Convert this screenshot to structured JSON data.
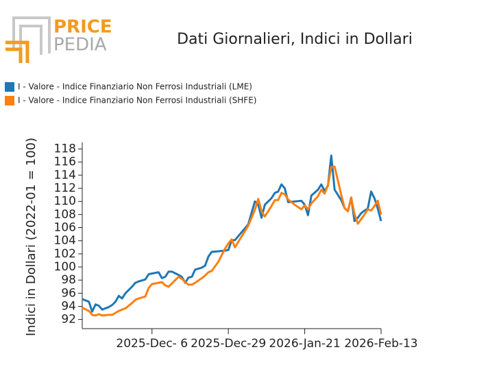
{
  "logo": {
    "top": "PRICE",
    "bottom": "PEDIA"
  },
  "chart_data": {
    "type": "line",
    "title": "Dati Giornalieri, Indici in Dollari",
    "y_label": "Indici in Dollari (2022-01 = 100)",
    "legend": "top-left",
    "x": [
      "2025-11-15",
      "2025-11-17",
      "2025-11-18",
      "2025-11-19",
      "2025-11-20",
      "2025-11-21",
      "2025-11-23",
      "2025-11-24",
      "2025-11-25",
      "2025-11-26",
      "2025-11-27",
      "2025-11-28",
      "2025-11-30",
      "2025-12-01",
      "2025-12-02",
      "2025-12-04",
      "2025-12-05",
      "2025-12-06",
      "2025-12-08",
      "2025-12-09",
      "2025-12-10",
      "2025-12-11",
      "2025-12-12",
      "2025-12-14",
      "2025-12-15",
      "2025-12-16",
      "2025-12-17",
      "2025-12-18",
      "2025-12-19",
      "2025-12-21",
      "2025-12-22",
      "2025-12-23",
      "2025-12-24",
      "2025-12-26",
      "2025-12-28",
      "2025-12-29",
      "2025-12-30",
      "2025-12-31",
      "2026-01-04",
      "2026-01-06",
      "2026-01-07",
      "2026-01-08",
      "2026-01-09",
      "2026-01-11",
      "2026-01-12",
      "2026-01-13",
      "2026-01-14",
      "2026-01-15",
      "2026-01-16",
      "2026-01-18",
      "2026-01-20",
      "2026-01-21",
      "2026-01-22",
      "2026-01-23",
      "2026-01-25",
      "2026-01-26",
      "2026-01-27",
      "2026-01-28",
      "2026-01-29",
      "2026-01-30",
      "2026-02-01",
      "2026-02-02",
      "2026-02-03",
      "2026-02-04",
      "2026-02-05",
      "2026-02-06",
      "2026-02-07",
      "2026-02-08",
      "2026-02-09",
      "2026-02-10",
      "2026-02-11",
      "2026-02-12",
      "2026-02-13"
    ],
    "series": [
      {
        "name": "I - Valore - Indice Finanziario Non Ferrosi Industriali (LME)",
        "color": "#1f77b4",
        "values": [
          95.1,
          94.7,
          93.2,
          94.3,
          94.1,
          93.5,
          93.9,
          94.2,
          94.7,
          95.6,
          95.2,
          96.0,
          97.0,
          97.6,
          97.8,
          98.1,
          98.9,
          99.0,
          99.2,
          98.3,
          98.5,
          99.3,
          99.3,
          98.8,
          98.5,
          97.6,
          98.4,
          98.5,
          99.6,
          99.9,
          100.2,
          101.6,
          102.3,
          102.4,
          102.5,
          102.6,
          104.1,
          104.1,
          106.5,
          110.0,
          109.5,
          107.5,
          109.5,
          110.5,
          111.3,
          111.5,
          112.6,
          112.0,
          109.9,
          110.0,
          110.1,
          109.5,
          107.9,
          110.9,
          111.8,
          112.6,
          111.6,
          112.4,
          117.0,
          111.8,
          110.2,
          109.0,
          108.5,
          110.6,
          107.0,
          107.5,
          108.2,
          108.6,
          108.9,
          111.5,
          110.5,
          108.9,
          107.0
        ]
      },
      {
        "name": "I - Valore - Indice Finanziario Non Ferrosi Industriali (SHFE)",
        "color": "#ff7f0e",
        "values": [
          93.8,
          93.3,
          92.7,
          92.6,
          92.8,
          92.6,
          92.7,
          92.7,
          93.0,
          93.3,
          93.5,
          93.7,
          94.5,
          95.0,
          95.2,
          95.5,
          96.8,
          97.4,
          97.6,
          97.7,
          97.2,
          97.0,
          97.5,
          98.5,
          98.2,
          97.7,
          97.3,
          97.3,
          97.6,
          98.3,
          98.7,
          99.2,
          99.4,
          100.8,
          102.8,
          103.6,
          104.2,
          103.0,
          106.3,
          108.7,
          110.4,
          108.5,
          107.7,
          109.3,
          110.2,
          110.2,
          111.3,
          111.1,
          110.3,
          109.5,
          108.8,
          109.4,
          108.8,
          109.7,
          110.8,
          111.8,
          111.2,
          112.5,
          115.2,
          115.3,
          111.0,
          109.0,
          108.5,
          110.6,
          108.1,
          106.6,
          107.3,
          108.0,
          108.8,
          108.6,
          109.3,
          110.1,
          108.0
        ]
      }
    ],
    "xlim": [
      "2025-11-15",
      "2026-02-13"
    ],
    "xticks": [
      {
        "value": "2025-12-06",
        "label": "2025-Dec- 6"
      },
      {
        "value": "2025-12-29",
        "label": "2025-Dec-29"
      },
      {
        "value": "2026-01-21",
        "label": "2026-Jan-21"
      },
      {
        "value": "2026-02-13",
        "label": "2026-Feb-13"
      }
    ],
    "ylim": [
      90.6,
      119
    ],
    "yticks": [
      92,
      94,
      96,
      98,
      100,
      102,
      104,
      106,
      108,
      110,
      112,
      114,
      116,
      118
    ]
  }
}
